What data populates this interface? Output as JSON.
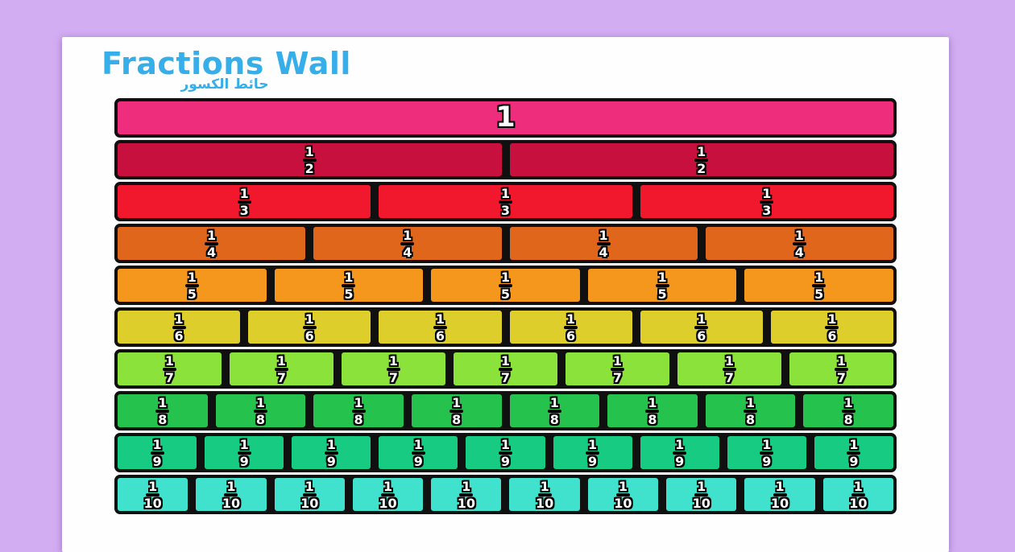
{
  "header": {
    "title": "Fractions Wall",
    "title_arabic": "حائط الكسور",
    "title_color": "#36aee9"
  },
  "colors": {
    "background": "#d3adf2",
    "page": "#fefefe",
    "mortar": "#101010",
    "fraction_text": "#ffffff",
    "fraction_outline": "#000000"
  },
  "wall": {
    "rows": [
      {
        "label": "1",
        "numerator": "1",
        "denominator": "",
        "pieces": 1,
        "color": "#ee2d7d",
        "whole": true
      },
      {
        "label": "1/2",
        "numerator": "1",
        "denominator": "2",
        "pieces": 2,
        "color": "#c8103f",
        "whole": false
      },
      {
        "label": "1/3",
        "numerator": "1",
        "denominator": "3",
        "pieces": 3,
        "color": "#f1172d",
        "whole": false
      },
      {
        "label": "1/4",
        "numerator": "1",
        "denominator": "4",
        "pieces": 4,
        "color": "#e0661b",
        "whole": false
      },
      {
        "label": "1/5",
        "numerator": "1",
        "denominator": "5",
        "pieces": 5,
        "color": "#f5971c",
        "whole": false
      },
      {
        "label": "1/6",
        "numerator": "1",
        "denominator": "6",
        "pieces": 6,
        "color": "#ddce2b",
        "whole": false
      },
      {
        "label": "1/7",
        "numerator": "1",
        "denominator": "7",
        "pieces": 7,
        "color": "#8ae23a",
        "whole": false
      },
      {
        "label": "1/8",
        "numerator": "1",
        "denominator": "8",
        "pieces": 8,
        "color": "#26c24e",
        "whole": false
      },
      {
        "label": "1/9",
        "numerator": "1",
        "denominator": "9",
        "pieces": 9,
        "color": "#17cb82",
        "whole": false
      },
      {
        "label": "1/10",
        "numerator": "1",
        "denominator": "10",
        "pieces": 10,
        "color": "#40e2cd",
        "whole": false
      }
    ]
  }
}
